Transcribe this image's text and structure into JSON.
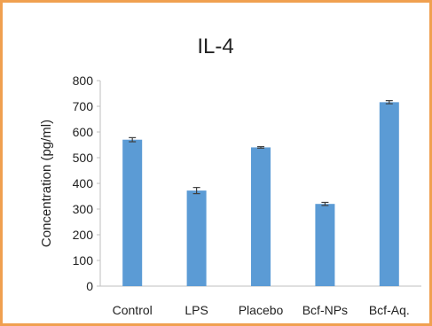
{
  "colors": {
    "frame": "#F0A050",
    "bar": "#5B9BD5",
    "axis": "#BFBFBF",
    "error_bar": "#404040"
  },
  "chart_data": {
    "type": "bar",
    "title": "IL-4",
    "xlabel": "",
    "ylabel": "Concentration (pg/ml)",
    "categories": [
      "Control",
      "LPS",
      "Placebo",
      "Bcf-NPs",
      "Bcf-Aq."
    ],
    "values": [
      570,
      372,
      540,
      320,
      716
    ],
    "errors": [
      8,
      12,
      3,
      6,
      6
    ],
    "ylim": [
      0,
      800
    ],
    "yticks": [
      0,
      100,
      200,
      300,
      400,
      500,
      600,
      700,
      800
    ],
    "grid": false,
    "legend": "none"
  }
}
